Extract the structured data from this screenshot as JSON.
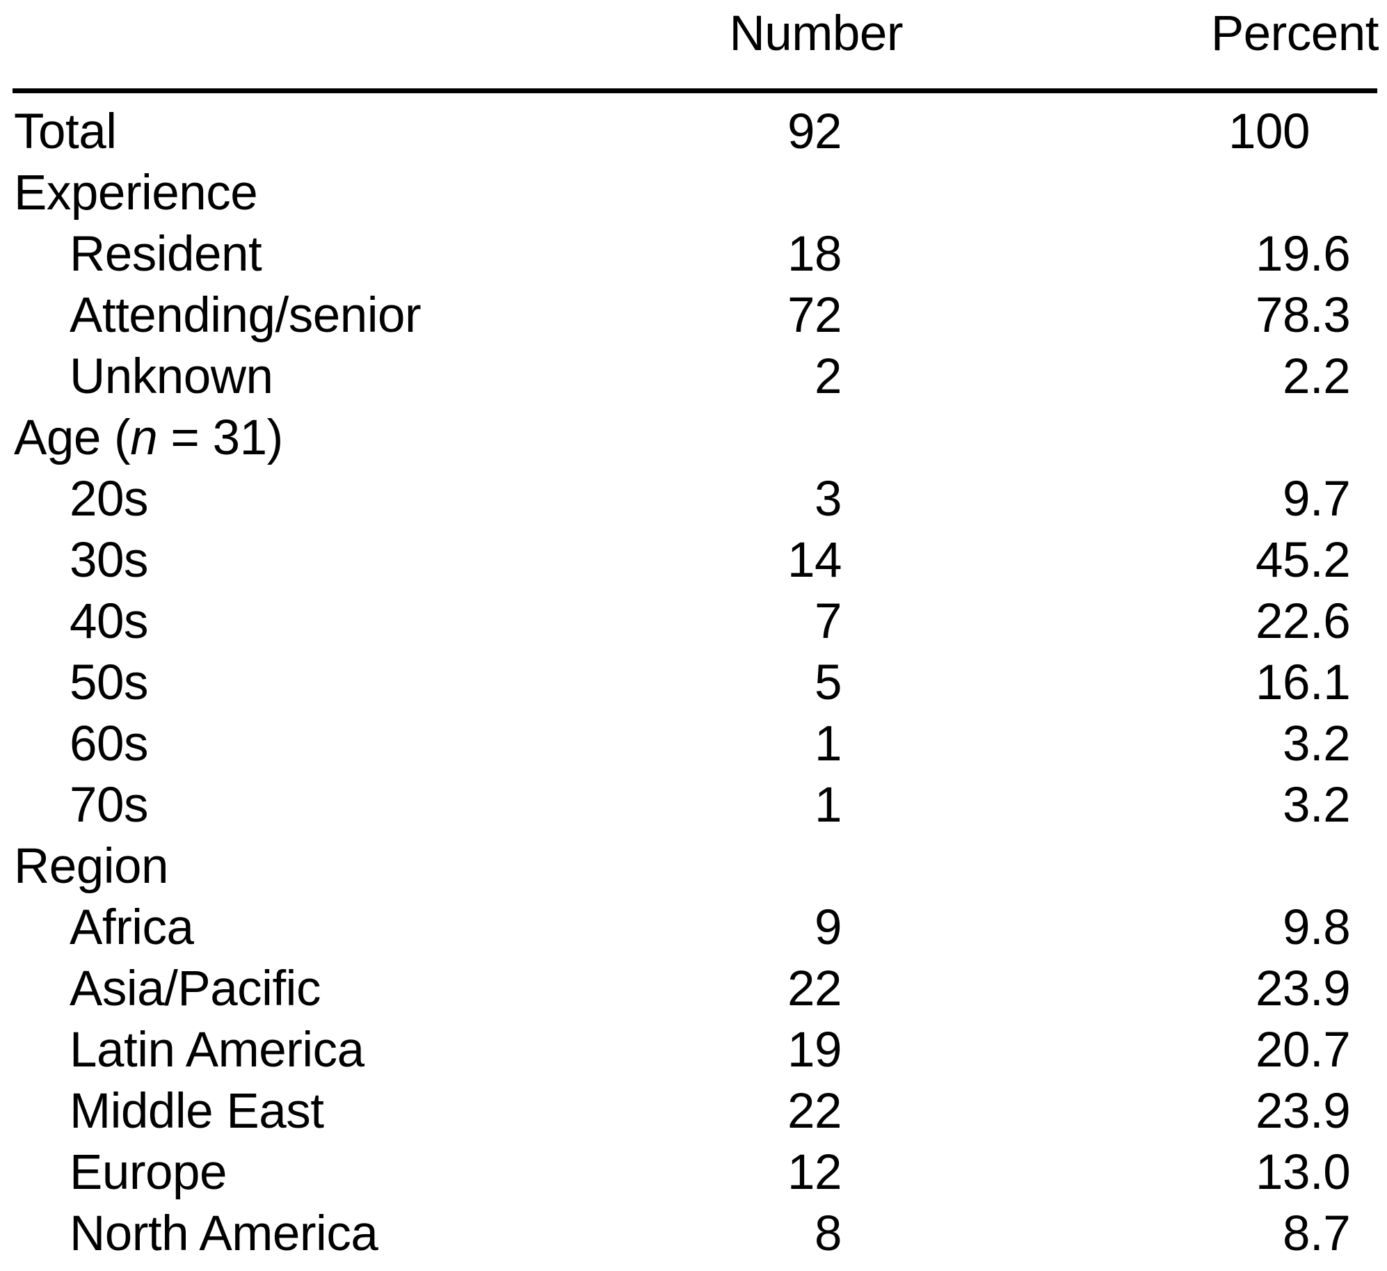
{
  "table": {
    "columns": {
      "number": "Number",
      "percent": "Percent"
    },
    "rows": [
      {
        "label": "Total",
        "indent": false,
        "number": "92",
        "percent": "100"
      },
      {
        "label": "Experience",
        "indent": false,
        "number": "",
        "percent": ""
      },
      {
        "label": "Resident",
        "indent": true,
        "number": "18",
        "percent": "19.6"
      },
      {
        "label": "Attending/senior",
        "indent": true,
        "number": "72",
        "percent": "78.3"
      },
      {
        "label": "Unknown",
        "indent": true,
        "number": "2",
        "percent": "2.2"
      },
      {
        "label": "Age (n = 31)",
        "indent": false,
        "number": "",
        "percent": "",
        "label_parts": [
          {
            "t": "Age ("
          },
          {
            "t": "n",
            "i": true
          },
          {
            "t": " = 31)"
          }
        ]
      },
      {
        "label": "20s",
        "indent": true,
        "number": "3",
        "percent": "9.7"
      },
      {
        "label": "30s",
        "indent": true,
        "number": "14",
        "percent": "45.2"
      },
      {
        "label": "40s",
        "indent": true,
        "number": "7",
        "percent": "22.6"
      },
      {
        "label": "50s",
        "indent": true,
        "number": "5",
        "percent": "16.1"
      },
      {
        "label": "60s",
        "indent": true,
        "number": "1",
        "percent": "3.2"
      },
      {
        "label": "70s",
        "indent": true,
        "number": "1",
        "percent": "3.2"
      },
      {
        "label": "Region",
        "indent": false,
        "number": "",
        "percent": ""
      },
      {
        "label": "Africa",
        "indent": true,
        "number": "9",
        "percent": "9.8"
      },
      {
        "label": "Asia/Pacific",
        "indent": true,
        "number": "22",
        "percent": "23.9"
      },
      {
        "label": "Latin America",
        "indent": true,
        "number": "19",
        "percent": "20.7"
      },
      {
        "label": "Middle East",
        "indent": true,
        "number": "22",
        "percent": "23.9"
      },
      {
        "label": "Europe",
        "indent": true,
        "number": "12",
        "percent": "13.0"
      },
      {
        "label": "North America",
        "indent": true,
        "number": "8",
        "percent": "8.7"
      }
    ]
  },
  "chart_data": {
    "type": "table",
    "title": "",
    "columns": [
      "",
      "Number",
      "Percent"
    ],
    "sections": [
      {
        "section": null,
        "rows": [
          [
            "Total",
            92,
            100
          ]
        ]
      },
      {
        "section": "Experience",
        "rows": [
          [
            "Resident",
            18,
            19.6
          ],
          [
            "Attending/senior",
            72,
            78.3
          ],
          [
            "Unknown",
            2,
            2.2
          ]
        ]
      },
      {
        "section": "Age (n = 31)",
        "rows": [
          [
            "20s",
            3,
            9.7
          ],
          [
            "30s",
            14,
            45.2
          ],
          [
            "40s",
            7,
            22.6
          ],
          [
            "50s",
            5,
            16.1
          ],
          [
            "60s",
            1,
            3.2
          ],
          [
            "70s",
            1,
            3.2
          ]
        ]
      },
      {
        "section": "Region",
        "rows": [
          [
            "Africa",
            9,
            9.8
          ],
          [
            "Asia/Pacific",
            22,
            23.9
          ],
          [
            "Latin America",
            19,
            20.7
          ],
          [
            "Middle East",
            22,
            23.9
          ],
          [
            "Europe",
            12,
            13.0
          ],
          [
            "North America",
            8,
            8.7
          ]
        ]
      }
    ]
  }
}
